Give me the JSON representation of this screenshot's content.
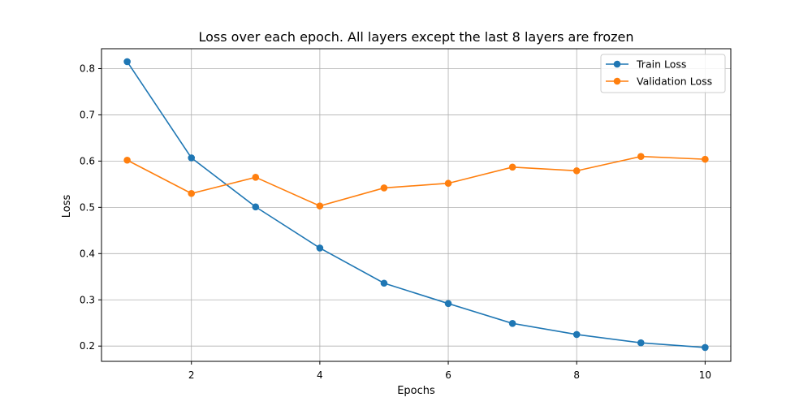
{
  "chart_data": {
    "type": "line",
    "title": "Loss over each epoch. All layers except the last 8 layers are frozen",
    "xlabel": "Epochs",
    "ylabel": "Loss",
    "x": [
      1,
      2,
      3,
      4,
      5,
      6,
      7,
      8,
      9,
      10
    ],
    "xlim": [
      0.6,
      10.4
    ],
    "ylim": [
      0.167,
      0.843
    ],
    "xticks": [
      2,
      4,
      6,
      8,
      10
    ],
    "yticks": [
      0.2,
      0.3,
      0.4,
      0.5,
      0.6,
      0.7,
      0.8
    ],
    "grid": true,
    "legend_position": "top-right",
    "series": [
      {
        "name": "Train Loss",
        "color": "#1f77b4",
        "marker": "circle",
        "values": [
          0.815,
          0.607,
          0.501,
          0.412,
          0.336,
          0.292,
          0.249,
          0.225,
          0.207,
          0.197
        ]
      },
      {
        "name": "Validation Loss",
        "color": "#ff7f0e",
        "marker": "circle",
        "values": [
          0.602,
          0.53,
          0.565,
          0.503,
          0.542,
          0.552,
          0.587,
          0.579,
          0.61,
          0.604
        ]
      }
    ]
  }
}
